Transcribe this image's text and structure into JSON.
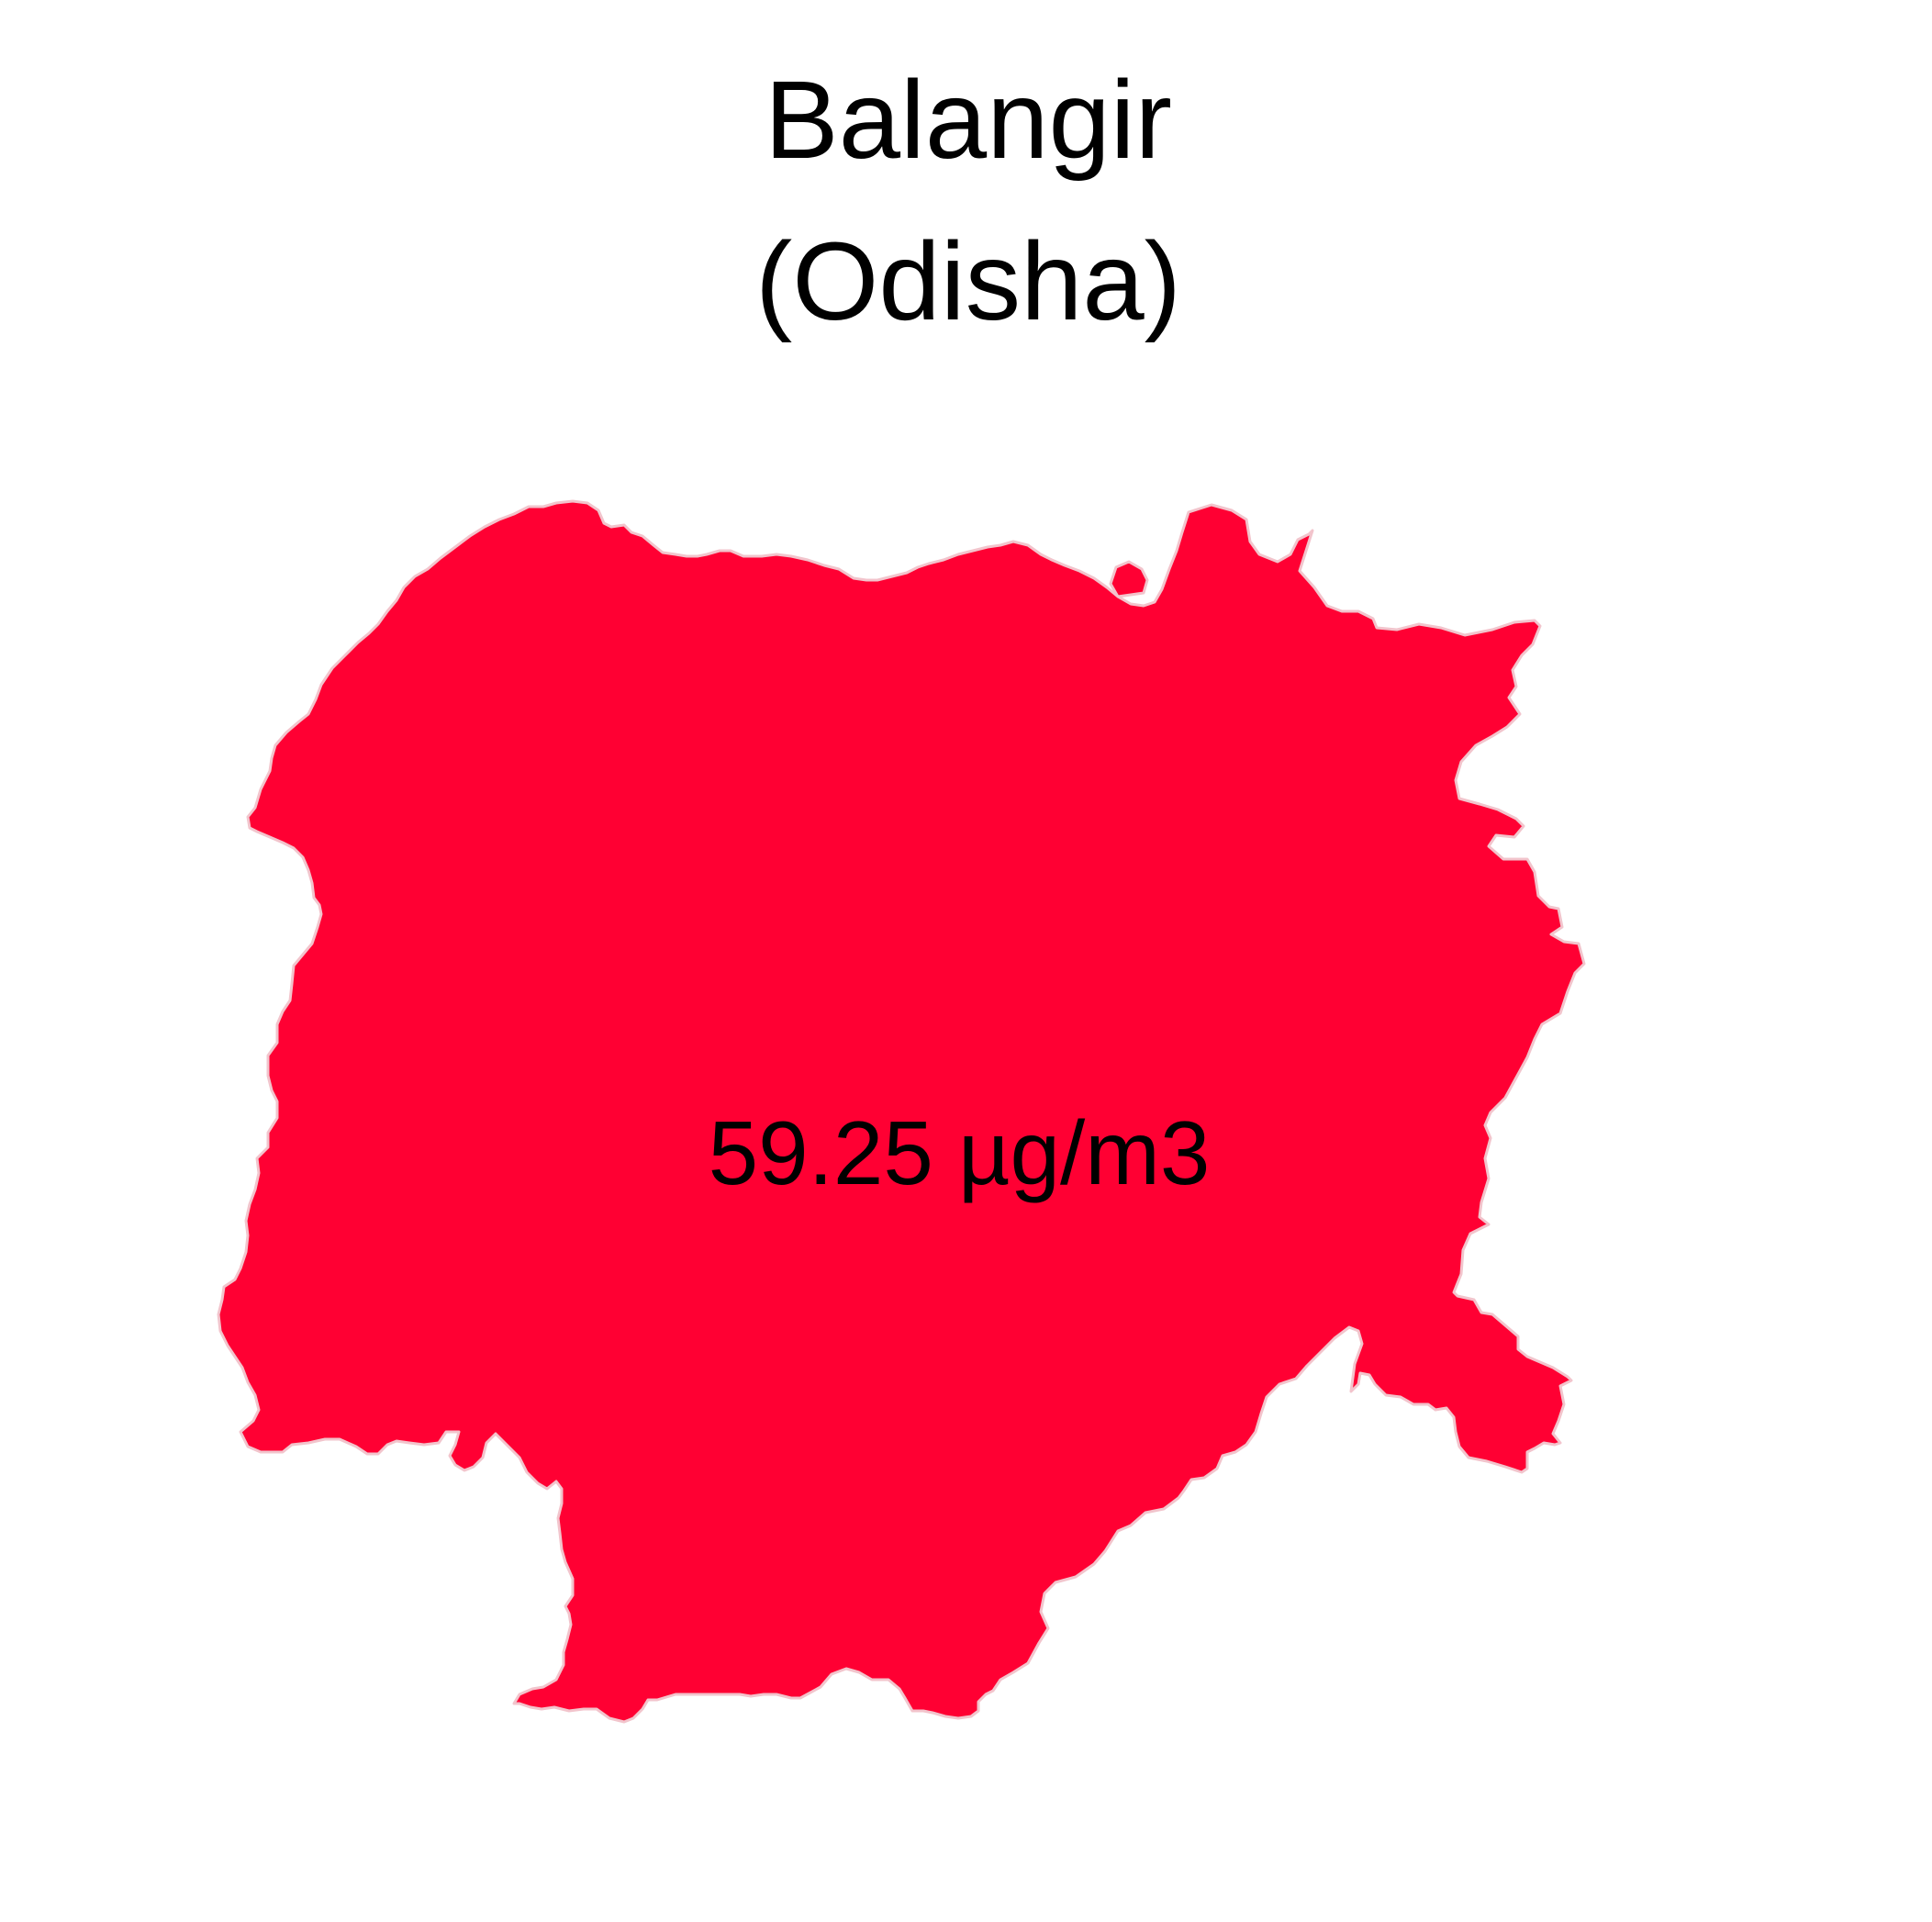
{
  "title": {
    "line1": "Balangir",
    "line2": "(Odisha)"
  },
  "region": {
    "name": "Balangir",
    "state": "Odisha",
    "value_label": "59.25 µg/m3",
    "value": 59.25,
    "unit": "µg/m3",
    "fill_color": "#ff0033",
    "outline_color": "#f2c4cc"
  }
}
